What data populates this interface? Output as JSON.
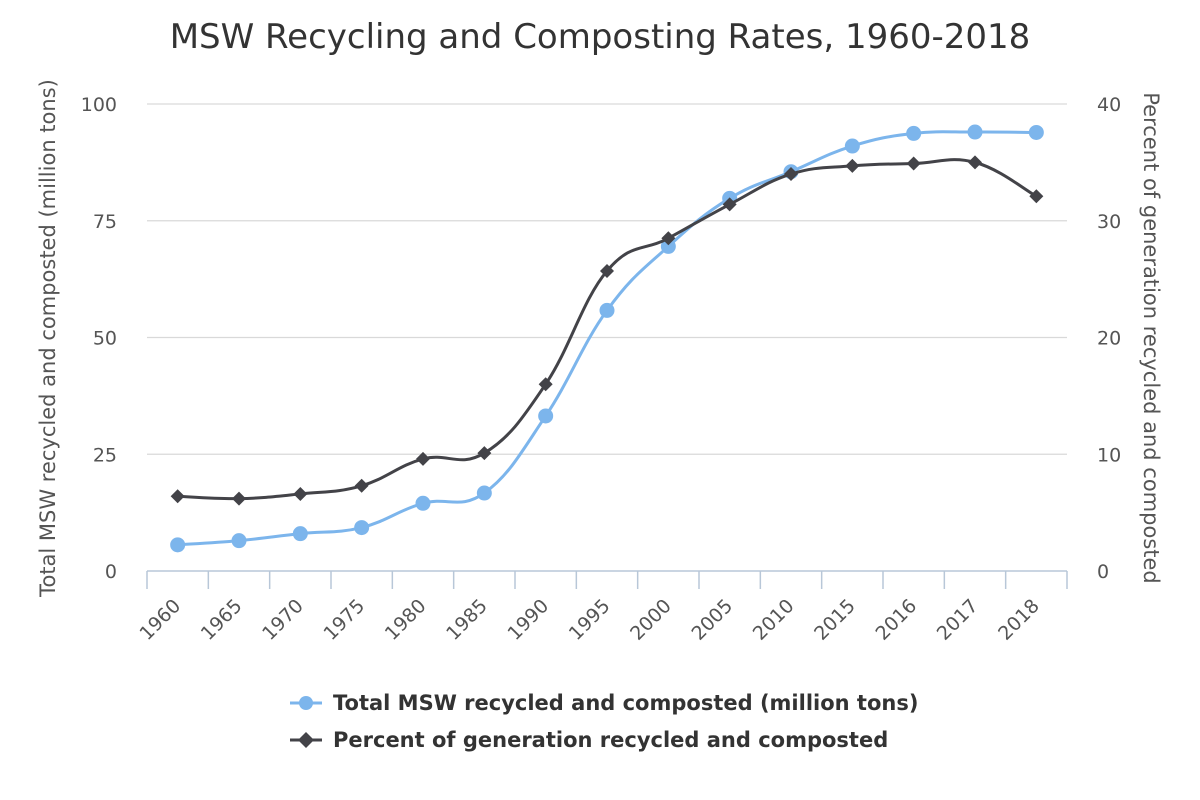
{
  "chart_data": {
    "type": "line",
    "title": "MSW Recycling and Composting Rates, 1960-2018",
    "categories": [
      "1960",
      "1965",
      "1970",
      "1975",
      "1980",
      "1985",
      "1990",
      "1995",
      "2000",
      "2005",
      "2010",
      "2015",
      "2016",
      "2017",
      "2018"
    ],
    "y_left": {
      "label": "Total MSW recycled and composted (million tons)",
      "ylim": [
        0,
        100
      ],
      "ticks": [
        0,
        25,
        50,
        75,
        100
      ]
    },
    "y_right": {
      "label": "Percent of generation recycled and composted",
      "ylim": [
        0,
        40
      ],
      "ticks": [
        0,
        10,
        20,
        30,
        40
      ]
    },
    "grid": true,
    "legend_position": "bottom",
    "series": [
      {
        "name": "Total MSW recycled and composted (million tons)",
        "axis": "left",
        "color": "#7cb5ec",
        "marker": "circle",
        "values": [
          5.6,
          6.5,
          8.0,
          9.3,
          14.5,
          16.7,
          33.2,
          55.8,
          69.5,
          79.8,
          85.5,
          91.0,
          93.7,
          94.0,
          93.9
        ]
      },
      {
        "name": "Percent of generation recycled and composted",
        "axis": "right",
        "color": "#434348",
        "marker": "diamond",
        "values": [
          6.4,
          6.2,
          6.6,
          7.3,
          9.6,
          10.1,
          16.0,
          25.7,
          28.5,
          31.4,
          34.0,
          34.7,
          34.9,
          35.0,
          32.1
        ]
      }
    ]
  }
}
